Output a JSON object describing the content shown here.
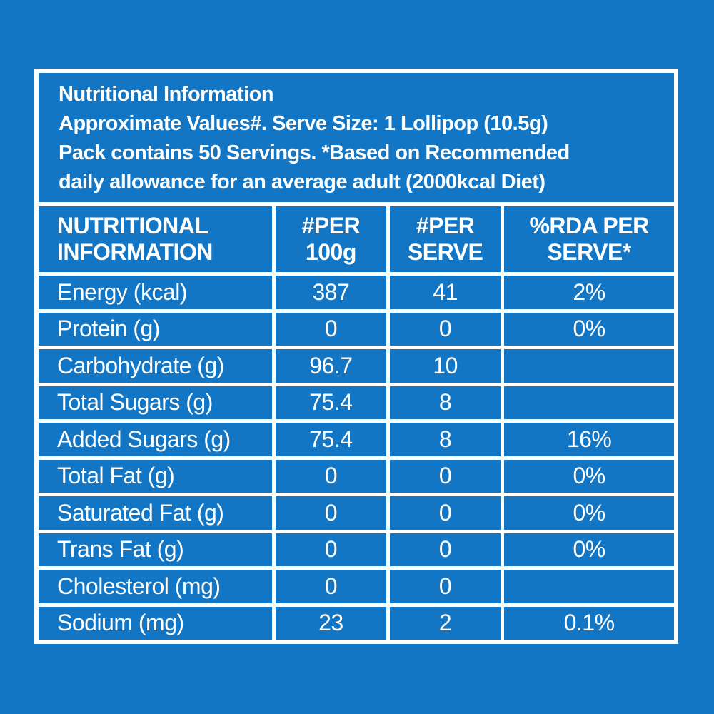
{
  "colors": {
    "background": "#1276C4",
    "grid_and_text": "#FFFFFF"
  },
  "intro": {
    "line1": "Nutritional Information",
    "line2": "Approximate Values#. Serve Size: 1 Lollipop (10.5g)",
    "line3": "Pack contains 50 Servings. *Based on Recommended",
    "line4": "daily allowance for an average adult (2000kcal Diet)"
  },
  "table": {
    "headers": [
      {
        "line1": "NUTRITIONAL",
        "line2": "INFORMATION"
      },
      {
        "line1": "#PER",
        "line2": "100g"
      },
      {
        "line1": "#PER",
        "line2": "SERVE"
      },
      {
        "line1": "%RDA PER",
        "line2": "SERVE*"
      }
    ],
    "rows": [
      {
        "label": "Energy (kcal)",
        "per_100g": "387",
        "per_serve": "41",
        "rda_per_serve": "2%"
      },
      {
        "label": "Protein (g)",
        "per_100g": "0",
        "per_serve": "0",
        "rda_per_serve": "0%"
      },
      {
        "label": "Carbohydrate (g)",
        "per_100g": "96.7",
        "per_serve": "10",
        "rda_per_serve": ""
      },
      {
        "label": "Total Sugars (g)",
        "per_100g": "75.4",
        "per_serve": "8",
        "rda_per_serve": ""
      },
      {
        "label": "Added Sugars (g)",
        "per_100g": "75.4",
        "per_serve": "8",
        "rda_per_serve": "16%"
      },
      {
        "label": "Total Fat (g)",
        "per_100g": "0",
        "per_serve": "0",
        "rda_per_serve": "0%"
      },
      {
        "label": "Saturated Fat (g)",
        "per_100g": "0",
        "per_serve": "0",
        "rda_per_serve": "0%"
      },
      {
        "label": "Trans Fat (g)",
        "per_100g": "0",
        "per_serve": "0",
        "rda_per_serve": "0%"
      },
      {
        "label": "Cholesterol (mg)",
        "per_100g": "0",
        "per_serve": "0",
        "rda_per_serve": ""
      },
      {
        "label": "Sodium (mg)",
        "per_100g": "23",
        "per_serve": "2",
        "rda_per_serve": "0.1%"
      }
    ]
  }
}
